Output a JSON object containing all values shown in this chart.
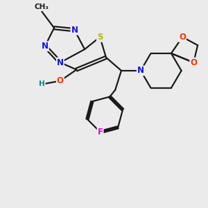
{
  "background_color": "#ebebeb",
  "bond_color": "#1a1a1a",
  "atom_colors": {
    "N": "#1010ee",
    "S": "#b8b800",
    "O": "#ff3300",
    "F": "#ee00ee",
    "H": "#008888",
    "C": "#1a1a1a"
  },
  "figsize": [
    3.0,
    3.0
  ],
  "dpi": 100
}
